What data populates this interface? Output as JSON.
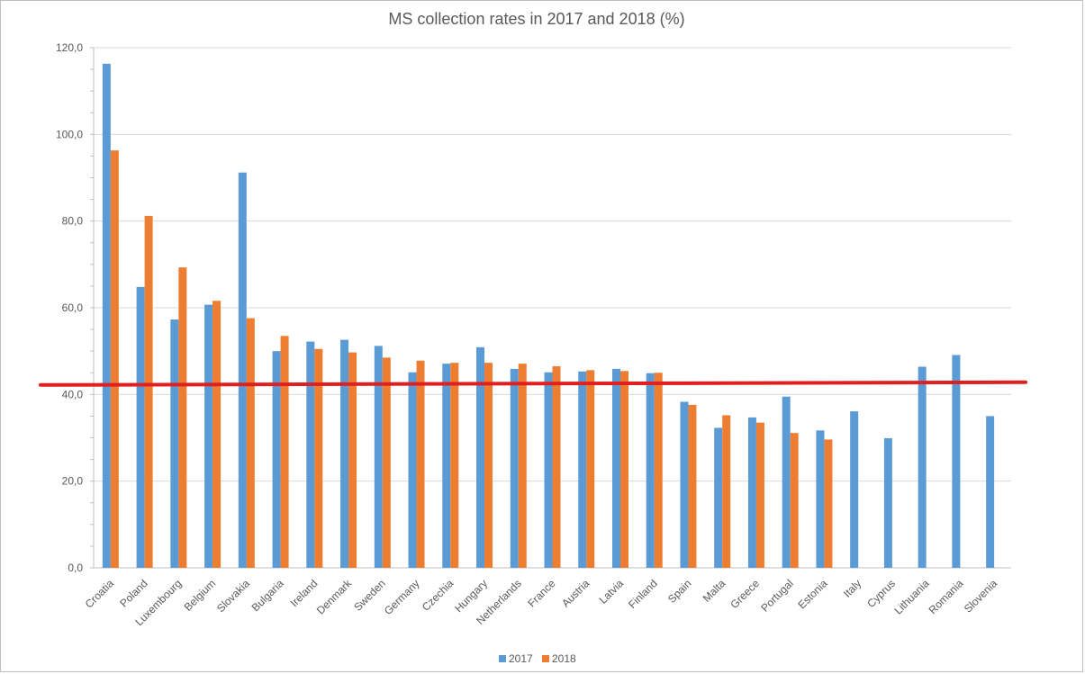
{
  "chart_data": {
    "type": "bar",
    "title": "MS collection rates in 2017 and 2018 (%)",
    "xlabel": "",
    "ylabel": "",
    "ylim": [
      0,
      120
    ],
    "yticks": [
      "0,0",
      "20,0",
      "40,0",
      "60,0",
      "80,0",
      "100,0",
      "120,0"
    ],
    "grid": true,
    "legend_position": "bottom",
    "categories": [
      "Croatia",
      "Poland",
      "Luxembourg",
      "Belgium",
      "Slovakia",
      "Bulgaria",
      "Ireland",
      "Denmark",
      "Sweden",
      "Germany",
      "Czechia",
      "Hungary",
      "Netherlands",
      "France",
      "Austria",
      "Latvia",
      "Finland",
      "Spain",
      "Malta",
      "Greece",
      "Portugal",
      "Estonia",
      "Italy",
      "Cyprus",
      "Lithuania",
      "Romania",
      "Slovenia"
    ],
    "series": [
      {
        "name": "2017",
        "color": "#5b9bd5",
        "values": [
          116.3,
          64.8,
          57.3,
          60.7,
          91.2,
          50.0,
          52.2,
          52.6,
          51.2,
          45.1,
          47.1,
          50.9,
          45.9,
          45.1,
          45.3,
          45.9,
          44.9,
          38.3,
          32.3,
          34.7,
          39.5,
          31.7,
          36.1,
          29.9,
          46.4,
          49.1,
          35.0
        ]
      },
      {
        "name": "2018",
        "color": "#ed7d31",
        "values": [
          96.3,
          81.2,
          69.3,
          61.6,
          57.6,
          53.5,
          50.5,
          49.7,
          48.5,
          47.8,
          47.3,
          47.3,
          47.1,
          46.5,
          45.6,
          45.4,
          45.0,
          37.6,
          35.2,
          33.5,
          31.1,
          29.6,
          null,
          null,
          null,
          null,
          null
        ]
      }
    ],
    "annotations": [
      {
        "type": "horizontal-line",
        "value": 42.5,
        "color": "#e02020",
        "label": ""
      }
    ]
  }
}
